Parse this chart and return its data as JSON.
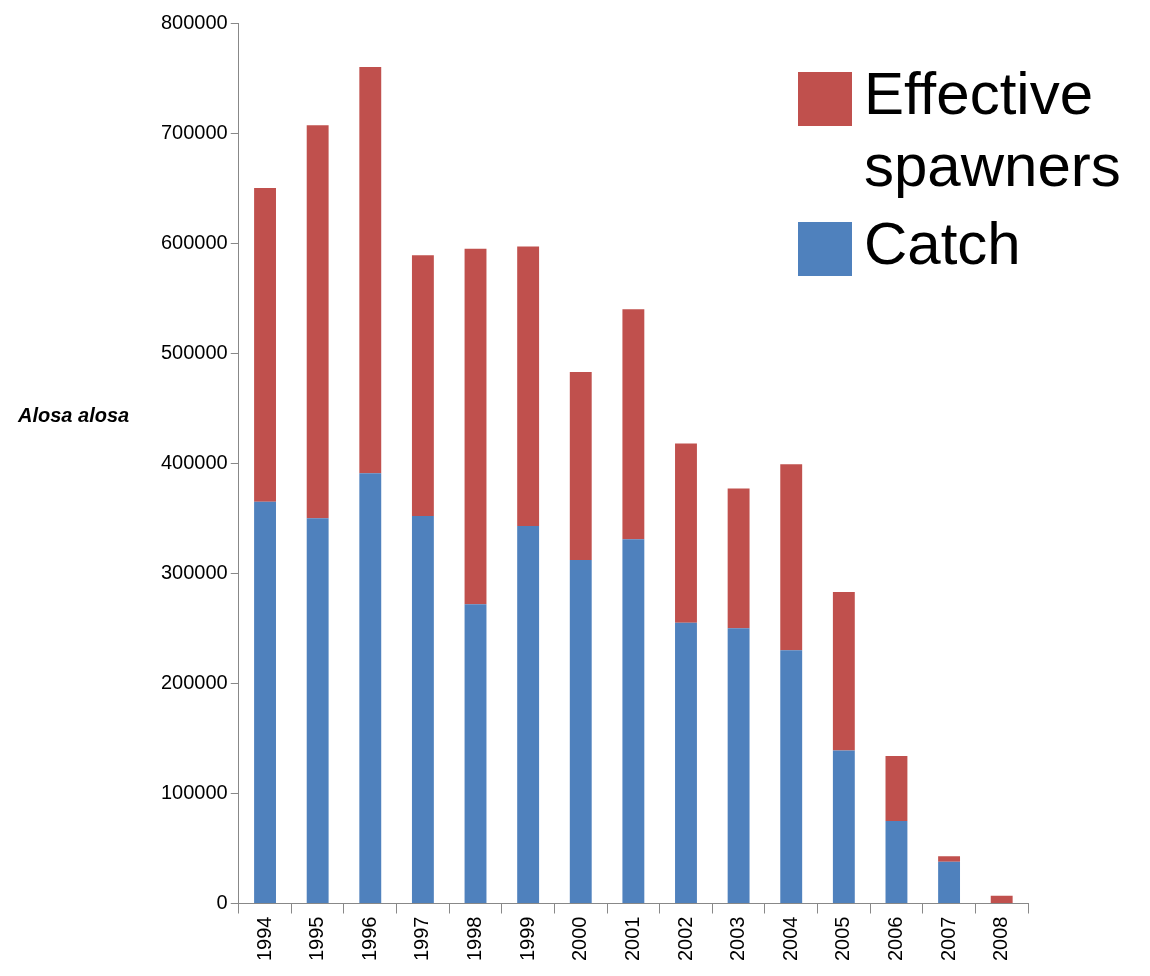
{
  "chart_data": {
    "type": "bar",
    "stacked": true,
    "ylabel": "Alosa alosa",
    "categories": [
      "1994",
      "1995",
      "1996",
      "1997",
      "1998",
      "1999",
      "2000",
      "2001",
      "2002",
      "2003",
      "2004",
      "2005",
      "2006",
      "2007",
      "2008"
    ],
    "series": [
      {
        "name": "Catch",
        "color": "#4f81bd",
        "values": [
          365000,
          350000,
          391000,
          352000,
          272000,
          343000,
          312000,
          331000,
          255000,
          250000,
          230000,
          139000,
          75000,
          38000,
          null
        ]
      },
      {
        "name": "Effective spawners",
        "color": "#c0504d",
        "values": [
          285000,
          357000,
          369000,
          237000,
          323000,
          254000,
          171000,
          209000,
          163000,
          127000,
          169000,
          144000,
          59000,
          5000,
          7000
        ]
      }
    ],
    "ylim": [
      0,
      800000
    ],
    "yticks": [
      0,
      100000,
      200000,
      300000,
      400000,
      500000,
      600000,
      700000,
      800000
    ],
    "grid": false,
    "legend": "top right"
  }
}
